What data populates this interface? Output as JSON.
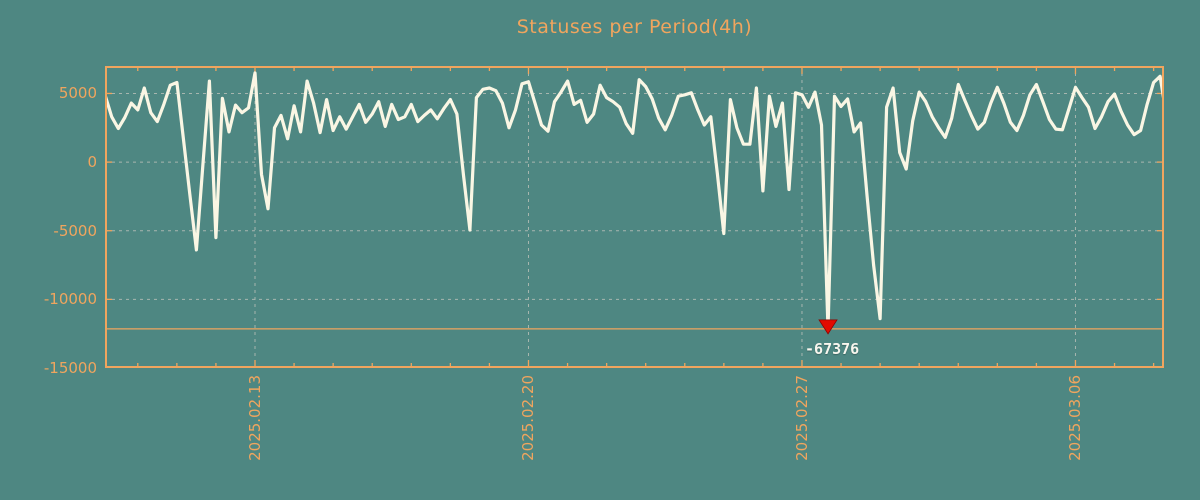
{
  "colors": {
    "background": "#4e8782",
    "accent_orange": "#f0a55e",
    "series_line": "#faf6e4",
    "gridline_gray": "#a7b6af",
    "marker_red": "#e30b00",
    "annotation_text": "#f8f6ee"
  },
  "chart_data": {
    "type": "line",
    "title": "Statuses per Period(4h)",
    "legend": false,
    "grid": true,
    "x_axis": {
      "tick_labels": [
        "2025.02.13",
        "2025.02.20",
        "2025.02.27",
        "2025.03.06"
      ],
      "tick_dates": [
        "2025-02-13T00:00:00",
        "2025-02-20T00:00:00",
        "2025-02-27T00:00:00",
        "2025-03-06T00:00:00"
      ],
      "minor_tick_interval": "1 day",
      "start": "2025-02-09T04:00:00",
      "end": "2025-03-08T08:00:00"
    },
    "y_axis": {
      "tick_values": [
        5000,
        0,
        -5000,
        -10000,
        -15000
      ],
      "tick_labels": [
        "5000",
        "0",
        "-5000",
        "-10000",
        "-15000"
      ],
      "range": [
        -15000,
        7000
      ]
    },
    "clip_line_value": -12150,
    "min_marker": {
      "label": "-67376",
      "value": -67376,
      "time": "2025-02-27T16:00:00"
    },
    "series": [
      {
        "name": "statuses",
        "start": "2025-02-09T04:00:00",
        "interval_hours": 4,
        "values": [
          4850,
          3300,
          2450,
          3250,
          4300,
          3800,
          5400,
          3600,
          2950,
          4200,
          5600,
          5800,
          1700,
          -2400,
          -6400,
          -200,
          5900,
          -5500,
          4650,
          2200,
          4150,
          3600,
          3950,
          6500,
          -900,
          -3400,
          2500,
          3400,
          1700,
          4100,
          2200,
          5900,
          4300,
          2150,
          4550,
          2300,
          3300,
          2400,
          3300,
          4200,
          2900,
          3500,
          4400,
          2600,
          4200,
          3100,
          3300,
          4200,
          2950,
          3400,
          3800,
          3150,
          3900,
          4550,
          3500,
          -900,
          -4950,
          4700,
          5300,
          5400,
          5200,
          4300,
          2500,
          3800,
          5700,
          5850,
          4300,
          2700,
          2250,
          4400,
          5100,
          5900,
          4200,
          4500,
          2900,
          3500,
          5600,
          4700,
          4400,
          4000,
          2800,
          2100,
          6000,
          5500,
          4600,
          3200,
          2350,
          3400,
          4800,
          4900,
          5050,
          3800,
          2700,
          3300,
          -800,
          -5200,
          4550,
          2500,
          1300,
          1300,
          5400,
          -2100,
          4800,
          2600,
          4300,
          -2000,
          5050,
          4900,
          4000,
          5100,
          2700,
          -67376,
          4800,
          4050,
          4600,
          2200,
          2850,
          -2500,
          -7500,
          -11400,
          4000,
          5400,
          700,
          -500,
          3000,
          5100,
          4400,
          3300,
          2500,
          1800,
          3200,
          5650,
          4500,
          3400,
          2400,
          2900,
          4300,
          5450,
          4300,
          2900,
          2300,
          3400,
          4900,
          5650,
          4400,
          3100,
          2400,
          2350,
          3900,
          5450,
          4700,
          4000,
          2450,
          3300,
          4400,
          4950,
          3700,
          2700,
          2000,
          2300,
          4200,
          5800,
          6250,
          3300
        ]
      }
    ]
  }
}
